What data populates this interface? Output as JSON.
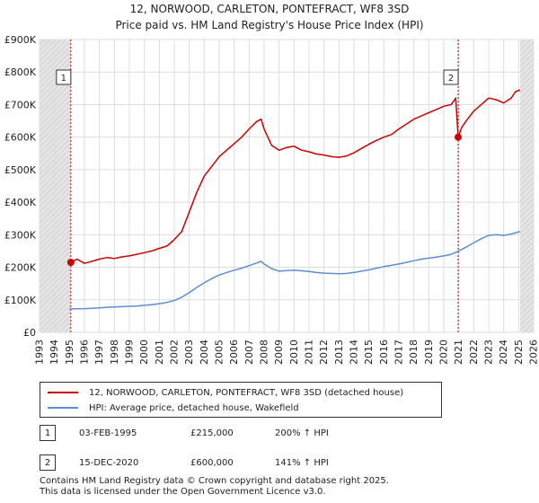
{
  "title_line1": "12, NORWOOD, CARLETON, PONTEFRACT, WF8 3SD",
  "title_line2": "Price paid vs. HM Land Registry's House Price Index (HPI)",
  "colors": {
    "property": "#cc0000",
    "hpi": "#5b8fd0",
    "shade": "#e6e6e6",
    "marker_line": "#cc0000"
  },
  "legend": {
    "property_label": "12, NORWOOD, CARLETON, PONTEFRACT, WF8 3SD (detached house)",
    "hpi_label": "HPI: Average price, detached house, Wakefield"
  },
  "annotations": [
    {
      "num": "1",
      "date": "03-FEB-1995",
      "price": "£215,000",
      "hpi_change": "200% ↑ HPI"
    },
    {
      "num": "2",
      "date": "15-DEC-2020",
      "price": "£600,000",
      "hpi_change": "141% ↑ HPI"
    }
  ],
  "footer_line1": "Contains HM Land Registry data © Crown copyright and database right 2025.",
  "footer_line2": "This data is licensed under the Open Government Licence v3.0.",
  "chart_data": {
    "type": "line",
    "xlim": [
      1993,
      2026
    ],
    "ylim": [
      0,
      900000
    ],
    "yticks": [
      0,
      100000,
      200000,
      300000,
      400000,
      500000,
      600000,
      700000,
      800000,
      900000
    ],
    "ytick_labels": [
      "£0",
      "£100K",
      "£200K",
      "£300K",
      "£400K",
      "£500K",
      "£600K",
      "£700K",
      "£800K",
      "£900K"
    ],
    "xticks": [
      1993,
      1994,
      1995,
      1996,
      1997,
      1998,
      1999,
      2000,
      2001,
      2002,
      2003,
      2004,
      2005,
      2006,
      2007,
      2008,
      2009,
      2010,
      2011,
      2012,
      2013,
      2014,
      2015,
      2016,
      2017,
      2018,
      2019,
      2020,
      2021,
      2022,
      2023,
      2024,
      2025,
      2026
    ],
    "shaded_ranges": [
      [
        1993,
        1995.1
      ],
      [
        2025.1,
        2026
      ]
    ],
    "sales": [
      {
        "label": "1",
        "x": 1995.09,
        "y": 215000
      },
      {
        "label": "2",
        "x": 2020.96,
        "y": 600000
      }
    ],
    "series": [
      {
        "name": "12, NORWOOD, CARLETON, PONTEFRACT, WF8 3SD (detached house)",
        "x": [
          1995.09,
          1995.5,
          1996,
          1996.5,
          1997,
          1997.5,
          1998,
          1998.5,
          1999,
          1999.5,
          2000,
          2000.5,
          2001,
          2001.5,
          2002,
          2002.5,
          2003,
          2003.5,
          2004,
          2004.5,
          2005,
          2005.5,
          2006,
          2006.5,
          2007,
          2007.5,
          2007.8,
          2008,
          2008.5,
          2009,
          2009.5,
          2010,
          2010.5,
          2011,
          2011.5,
          2012,
          2012.5,
          2013,
          2013.5,
          2014,
          2014.5,
          2015,
          2015.5,
          2016,
          2016.5,
          2017,
          2017.5,
          2018,
          2018.5,
          2019,
          2019.5,
          2020,
          2020.5,
          2020.8,
          2020.96,
          2021.2,
          2021.5,
          2022,
          2022.5,
          2023,
          2023.5,
          2024,
          2024.5,
          2024.8,
          2025.1
        ],
        "y": [
          215000,
          225000,
          212000,
          218000,
          225000,
          230000,
          227000,
          232000,
          235000,
          240000,
          245000,
          250000,
          258000,
          265000,
          285000,
          310000,
          370000,
          430000,
          480000,
          510000,
          540000,
          560000,
          580000,
          600000,
          625000,
          648000,
          655000,
          625000,
          575000,
          560000,
          568000,
          572000,
          560000,
          555000,
          548000,
          545000,
          540000,
          538000,
          542000,
          552000,
          565000,
          578000,
          590000,
          600000,
          608000,
          625000,
          640000,
          655000,
          665000,
          675000,
          685000,
          695000,
          700000,
          720000,
          600000,
          630000,
          650000,
          680000,
          700000,
          720000,
          715000,
          705000,
          720000,
          740000,
          745000
        ]
      },
      {
        "name": "HPI: Average price, detached house, Wakefield",
        "x": [
          1995,
          1995.5,
          1996,
          1996.5,
          1997,
          1997.5,
          1998,
          1998.5,
          1999,
          1999.5,
          2000,
          2000.5,
          2001,
          2001.5,
          2002,
          2002.5,
          2003,
          2003.5,
          2004,
          2004.5,
          2005,
          2005.5,
          2006,
          2006.5,
          2007,
          2007.5,
          2007.8,
          2008,
          2008.5,
          2009,
          2009.5,
          2010,
          2010.5,
          2011,
          2011.5,
          2012,
          2012.5,
          2013,
          2013.5,
          2014,
          2014.5,
          2015,
          2015.5,
          2016,
          2016.5,
          2017,
          2017.5,
          2018,
          2018.5,
          2019,
          2019.5,
          2020,
          2020.5,
          2020.96,
          2021.5,
          2022,
          2022.5,
          2023,
          2023.5,
          2024,
          2024.5,
          2025.1
        ],
        "y": [
          72000,
          72500,
          73000,
          74000,
          75500,
          77000,
          78000,
          79000,
          80000,
          81000,
          83000,
          85000,
          88000,
          92000,
          98000,
          108000,
          122000,
          138000,
          152000,
          165000,
          176000,
          184000,
          191000,
          197000,
          205000,
          213000,
          218000,
          210000,
          196000,
          188000,
          190000,
          191000,
          189000,
          187000,
          184000,
          182000,
          181000,
          180000,
          181000,
          184000,
          188000,
          192000,
          197000,
          202000,
          206000,
          210000,
          215000,
          220000,
          225000,
          228000,
          231000,
          235000,
          240000,
          249000,
          262000,
          275000,
          288000,
          298000,
          300000,
          298000,
          302000,
          310000
        ]
      }
    ]
  }
}
